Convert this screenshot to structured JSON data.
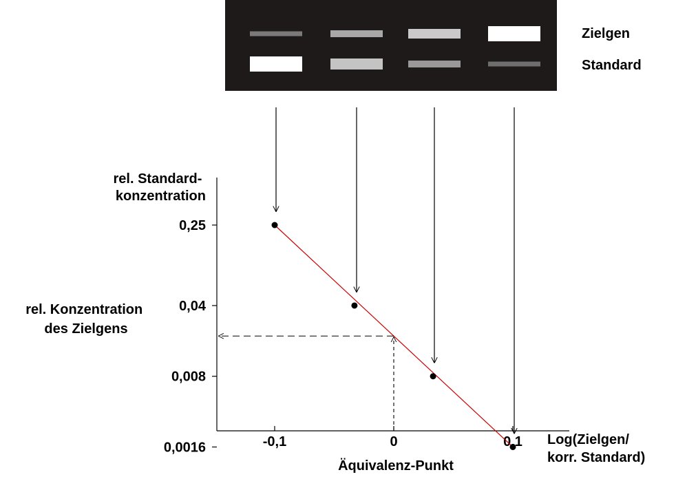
{
  "gel": {
    "background": "#1e1a1a",
    "row_labels": {
      "target": "Zielgen",
      "standard": "Standard"
    },
    "lanes": [
      {
        "target_band": "#7a7a7a",
        "standard_band": "#ffffff"
      },
      {
        "target_band": "#a8a8a8",
        "standard_band": "#c4c4c4"
      },
      {
        "target_band": "#cacaca",
        "standard_band": "#999999"
      },
      {
        "target_band": "#ffffff",
        "standard_band": "#6e6e6e"
      }
    ]
  },
  "chart_data": {
    "type": "line",
    "title": "",
    "ylabel": [
      "rel. Standard-",
      "konzentration"
    ],
    "xlabel": [
      "Log(Zielgen/",
      "korr. Standard)"
    ],
    "y_scale": "log",
    "x_ticks": [
      "-0,1",
      "0",
      "0,1"
    ],
    "x_tick_values": [
      -0.1,
      0,
      0.1
    ],
    "y_ticks": [
      "0,25",
      "0,04",
      "0,008",
      "0,0016"
    ],
    "y_tick_values": [
      0.25,
      0.04,
      0.008,
      0.0016
    ],
    "xlim": [
      -0.15,
      0.15
    ],
    "ylim": [
      0.001,
      0.6
    ],
    "points": [
      {
        "x": -0.1,
        "y": 0.25
      },
      {
        "x": -0.033,
        "y": 0.04
      },
      {
        "x": 0.033,
        "y": 0.008
      },
      {
        "x": 0.1,
        "y": 0.0016
      }
    ],
    "fit_line_color": "#cc0000",
    "equivalence": {
      "x": 0,
      "x_label": "Äquivalenz-Punkt",
      "y_label": [
        "rel. Konzentration",
        "des Zielgens"
      ]
    }
  }
}
